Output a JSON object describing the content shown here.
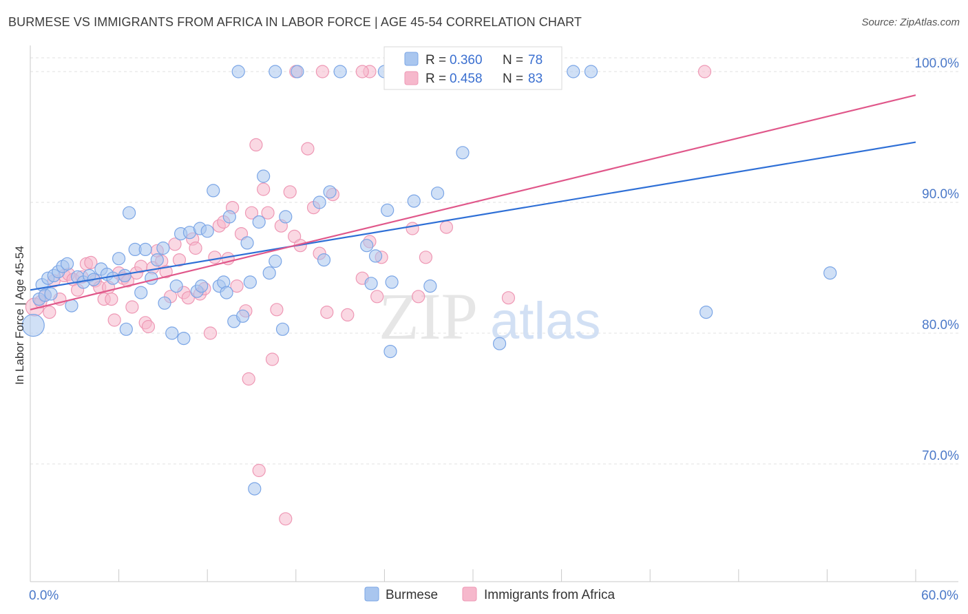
{
  "title": "BURMESE VS IMMIGRANTS FROM AFRICA IN LABOR FORCE | AGE 45-54 CORRELATION CHART",
  "source": "Source: ZipAtlas.com",
  "watermark": {
    "zip": "ZIP",
    "atlas": "atlas"
  },
  "colors": {
    "burmese_fill": "#a9c6ef",
    "burmese_stroke": "#7aa5e6",
    "burmese_line": "#2e6fd6",
    "africa_fill": "#f6b8cc",
    "africa_stroke": "#ee97b4",
    "africa_line": "#e0578a",
    "grid": "#e2e2e2",
    "tick_text": "#4a78c8"
  },
  "legend_top": [
    {
      "r_label": "R = ",
      "r_value": "0.360",
      "n_label": "N = ",
      "n_value": "78",
      "color": "burmese"
    },
    {
      "r_label": "R = ",
      "r_value": "0.458",
      "n_label": "N = ",
      "n_value": "83",
      "color": "africa"
    }
  ],
  "legend_bottom": [
    "Burmese",
    "Immigrants from Africa"
  ],
  "chart_data": {
    "type": "scatter",
    "title": "BURMESE VS IMMIGRANTS FROM AFRICA IN LABOR FORCE | AGE 45-54 CORRELATION CHART",
    "xlabel": "",
    "ylabel": "In Labor Force | Age 45-54",
    "xlim": [
      0,
      60
    ],
    "ylim": [
      61,
      102
    ],
    "x_tick_labels": [
      "0.0%",
      "60.0%"
    ],
    "y_ticks": [
      70,
      80,
      90,
      100
    ],
    "y_tick_labels": [
      "70.0%",
      "80.0%",
      "90.0%",
      "100.0%"
    ],
    "grid": true,
    "legend_placement": "top-center",
    "series": [
      {
        "name": "Burmese",
        "color": "#a9c6ef",
        "r": 0.36,
        "n": 78,
        "trend": {
          "x": [
            0,
            60
          ],
          "y": [
            83.3,
            94.6
          ]
        },
        "points": [
          [
            0.2,
            80.6
          ],
          [
            0.6,
            82.6
          ],
          [
            0.8,
            83.7
          ],
          [
            1.0,
            82.9
          ],
          [
            1.2,
            84.2
          ],
          [
            1.4,
            83.0
          ],
          [
            1.6,
            84.4
          ],
          [
            1.9,
            84.7
          ],
          [
            2.2,
            85.1
          ],
          [
            2.5,
            85.3
          ],
          [
            2.8,
            82.1
          ],
          [
            3.2,
            84.3
          ],
          [
            3.6,
            83.9
          ],
          [
            4.0,
            84.4
          ],
          [
            4.3,
            84.1
          ],
          [
            4.8,
            84.9
          ],
          [
            5.2,
            84.5
          ],
          [
            5.6,
            84.2
          ],
          [
            6.0,
            85.7
          ],
          [
            6.4,
            84.4
          ],
          [
            6.5,
            80.3
          ],
          [
            6.7,
            89.2
          ],
          [
            7.1,
            86.4
          ],
          [
            7.5,
            83.1
          ],
          [
            7.8,
            86.4
          ],
          [
            8.2,
            84.2
          ],
          [
            8.6,
            85.6
          ],
          [
            9.0,
            86.5
          ],
          [
            9.1,
            82.3
          ],
          [
            9.6,
            80.0
          ],
          [
            9.9,
            83.6
          ],
          [
            10.2,
            87.6
          ],
          [
            10.4,
            79.6
          ],
          [
            10.8,
            87.7
          ],
          [
            11.3,
            83.2
          ],
          [
            11.5,
            88.0
          ],
          [
            11.6,
            83.6
          ],
          [
            12.0,
            87.8
          ],
          [
            12.4,
            90.9
          ],
          [
            12.8,
            83.6
          ],
          [
            13.1,
            83.9
          ],
          [
            13.3,
            83.1
          ],
          [
            13.5,
            88.9
          ],
          [
            13.8,
            80.9
          ],
          [
            14.1,
            100.0
          ],
          [
            14.4,
            81.3
          ],
          [
            14.7,
            86.9
          ],
          [
            14.9,
            83.9
          ],
          [
            15.2,
            68.1
          ],
          [
            15.5,
            88.5
          ],
          [
            15.8,
            92.0
          ],
          [
            16.2,
            84.6
          ],
          [
            16.6,
            85.5
          ],
          [
            17.1,
            80.3
          ],
          [
            17.3,
            88.9
          ],
          [
            19.6,
            90.0
          ],
          [
            19.9,
            85.6
          ],
          [
            20.3,
            90.8
          ],
          [
            22.8,
            86.7
          ],
          [
            23.1,
            83.8
          ],
          [
            23.4,
            85.9
          ],
          [
            24.0,
            100.0
          ],
          [
            24.2,
            89.4
          ],
          [
            24.4,
            78.6
          ],
          [
            24.5,
            83.9
          ],
          [
            26.0,
            90.1
          ],
          [
            27.1,
            83.6
          ],
          [
            27.6,
            90.7
          ],
          [
            29.3,
            93.8
          ],
          [
            31.8,
            79.2
          ],
          [
            36.8,
            100.0
          ],
          [
            38.0,
            100.0
          ],
          [
            45.8,
            81.6
          ],
          [
            54.2,
            84.6
          ],
          [
            18.1,
            100.0
          ],
          [
            21.0,
            100.0
          ],
          [
            25.0,
            100.0
          ],
          [
            16.6,
            100.0
          ]
        ]
      },
      {
        "name": "Immigrants from Africa",
        "color": "#f6b8cc",
        "r": 0.458,
        "n": 83,
        "trend": {
          "x": [
            0,
            60
          ],
          "y": [
            81.8,
            98.2
          ]
        },
        "points": [
          [
            0.3,
            82.0
          ],
          [
            0.7,
            82.4
          ],
          [
            1.0,
            82.9
          ],
          [
            1.3,
            81.6
          ],
          [
            1.6,
            84.0
          ],
          [
            2.0,
            82.6
          ],
          [
            2.3,
            84.4
          ],
          [
            2.6,
            84.5
          ],
          [
            2.9,
            84.1
          ],
          [
            3.2,
            83.3
          ],
          [
            3.5,
            84.3
          ],
          [
            3.8,
            85.3
          ],
          [
            4.1,
            85.4
          ],
          [
            4.4,
            84.0
          ],
          [
            4.7,
            83.5
          ],
          [
            5.0,
            82.6
          ],
          [
            5.3,
            83.5
          ],
          [
            5.5,
            82.6
          ],
          [
            5.7,
            81.0
          ],
          [
            6.0,
            84.6
          ],
          [
            6.3,
            84.2
          ],
          [
            6.6,
            84.0
          ],
          [
            6.9,
            82.0
          ],
          [
            7.2,
            84.6
          ],
          [
            7.5,
            85.1
          ],
          [
            7.8,
            80.8
          ],
          [
            8.0,
            80.5
          ],
          [
            8.3,
            85.0
          ],
          [
            8.6,
            86.3
          ],
          [
            8.9,
            85.5
          ],
          [
            9.2,
            84.7
          ],
          [
            9.5,
            82.8
          ],
          [
            9.8,
            86.8
          ],
          [
            10.1,
            85.6
          ],
          [
            10.4,
            83.1
          ],
          [
            10.7,
            82.7
          ],
          [
            11.0,
            87.2
          ],
          [
            11.2,
            86.5
          ],
          [
            11.5,
            83.0
          ],
          [
            11.8,
            83.4
          ],
          [
            12.2,
            80.0
          ],
          [
            12.5,
            85.8
          ],
          [
            12.8,
            88.2
          ],
          [
            13.1,
            88.5
          ],
          [
            13.4,
            85.7
          ],
          [
            13.7,
            89.6
          ],
          [
            14.0,
            83.6
          ],
          [
            14.3,
            87.6
          ],
          [
            14.6,
            81.7
          ],
          [
            14.8,
            76.5
          ],
          [
            15.0,
            89.2
          ],
          [
            15.3,
            94.4
          ],
          [
            15.5,
            69.5
          ],
          [
            15.8,
            91.0
          ],
          [
            16.1,
            89.2
          ],
          [
            16.4,
            78.0
          ],
          [
            16.7,
            81.8
          ],
          [
            17.0,
            88.2
          ],
          [
            17.3,
            65.8
          ],
          [
            17.6,
            90.8
          ],
          [
            17.9,
            87.4
          ],
          [
            18.3,
            86.7
          ],
          [
            18.8,
            94.1
          ],
          [
            19.2,
            89.6
          ],
          [
            19.6,
            86.1
          ],
          [
            20.1,
            81.6
          ],
          [
            20.5,
            90.6
          ],
          [
            21.5,
            81.4
          ],
          [
            22.5,
            84.2
          ],
          [
            23.0,
            87.0
          ],
          [
            23.5,
            82.8
          ],
          [
            23.8,
            85.8
          ],
          [
            25.9,
            88.0
          ],
          [
            26.3,
            82.8
          ],
          [
            26.8,
            85.8
          ],
          [
            28.2,
            88.1
          ],
          [
            32.4,
            82.7
          ],
          [
            45.7,
            100.0
          ],
          [
            19.8,
            100.0
          ],
          [
            23.0,
            100.0
          ],
          [
            27.0,
            100.0
          ],
          [
            18.0,
            100.0
          ],
          [
            22.5,
            100.0
          ]
        ]
      }
    ]
  }
}
